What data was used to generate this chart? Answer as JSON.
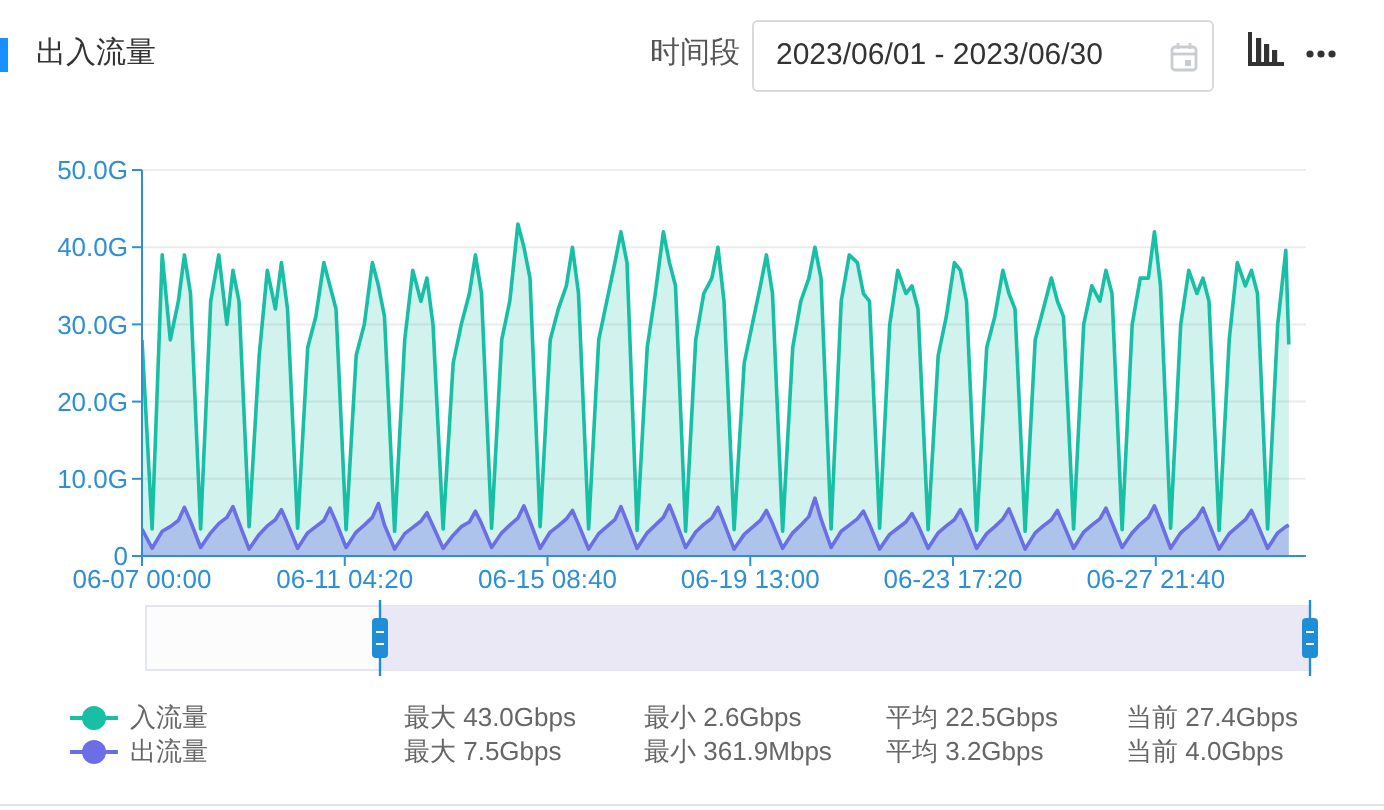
{
  "chart_data": {
    "type": "area",
    "title": "出入流量",
    "annotations": [
      "时间段",
      "2023/06/01 - 2023/06/30",
      "最大 43.0Gbps",
      "最小 2.6Gbps",
      "平均 22.5Gbps",
      "当前 27.4Gbps",
      "最大 7.5Gbps",
      "最小 361.9Mbps",
      "平均 3.2Gbps",
      "当前 4.0Gbps"
    ],
    "x": [
      "2023-06-07T00:00",
      "2023-06-07T05:00",
      "2023-06-07T10:00",
      "2023-06-07T14:00",
      "2023-06-07T18:00",
      "2023-06-07T21:00",
      "2023-06-08T00:00",
      "2023-06-08T05:00",
      "2023-06-08T10:00",
      "2023-06-08T14:00",
      "2023-06-08T18:00",
      "2023-06-08T21:00",
      "2023-06-09T00:00",
      "2023-06-09T05:00",
      "2023-06-09T10:00",
      "2023-06-09T14:00",
      "2023-06-09T18:00",
      "2023-06-09T21:00",
      "2023-06-10T00:00",
      "2023-06-10T05:00",
      "2023-06-10T10:00",
      "2023-06-10T14:00",
      "2023-06-10T18:00",
      "2023-06-10T21:00",
      "2023-06-11T00:00",
      "2023-06-11T05:00",
      "2023-06-11T10:00",
      "2023-06-11T14:00",
      "2023-06-11T18:00",
      "2023-06-11T21:00",
      "2023-06-12T00:00",
      "2023-06-12T05:00",
      "2023-06-12T10:00",
      "2023-06-12T14:00",
      "2023-06-12T18:00",
      "2023-06-12T21:00",
      "2023-06-13T00:00",
      "2023-06-13T05:00",
      "2023-06-13T10:00",
      "2023-06-13T14:00",
      "2023-06-13T18:00",
      "2023-06-13T21:00",
      "2023-06-14T00:00",
      "2023-06-14T05:00",
      "2023-06-14T10:00",
      "2023-06-14T14:00",
      "2023-06-14T18:00",
      "2023-06-14T21:00",
      "2023-06-15T00:00",
      "2023-06-15T05:00",
      "2023-06-15T10:00",
      "2023-06-15T14:00",
      "2023-06-15T18:00",
      "2023-06-15T21:00",
      "2023-06-16T00:00",
      "2023-06-16T05:00",
      "2023-06-16T10:00",
      "2023-06-16T14:00",
      "2023-06-16T18:00",
      "2023-06-16T21:00",
      "2023-06-17T00:00",
      "2023-06-17T05:00",
      "2023-06-17T10:00",
      "2023-06-17T14:00",
      "2023-06-17T18:00",
      "2023-06-17T21:00",
      "2023-06-18T00:00",
      "2023-06-18T05:00",
      "2023-06-18T10:00",
      "2023-06-18T14:00",
      "2023-06-18T18:00",
      "2023-06-18T21:00",
      "2023-06-19T00:00",
      "2023-06-19T05:00",
      "2023-06-19T10:00",
      "2023-06-19T14:00",
      "2023-06-19T18:00",
      "2023-06-19T21:00",
      "2023-06-20T00:00",
      "2023-06-20T05:00",
      "2023-06-20T10:00",
      "2023-06-20T14:00",
      "2023-06-20T18:00",
      "2023-06-20T21:00",
      "2023-06-21T00:00",
      "2023-06-21T05:00",
      "2023-06-21T10:00",
      "2023-06-21T14:00",
      "2023-06-21T18:00",
      "2023-06-21T21:00",
      "2023-06-22T00:00",
      "2023-06-22T05:00",
      "2023-06-22T10:00",
      "2023-06-22T14:00",
      "2023-06-22T18:00",
      "2023-06-22T21:00",
      "2023-06-23T00:00",
      "2023-06-23T05:00",
      "2023-06-23T10:00",
      "2023-06-23T14:00",
      "2023-06-23T18:00",
      "2023-06-23T21:00",
      "2023-06-24T00:00",
      "2023-06-24T05:00",
      "2023-06-24T10:00",
      "2023-06-24T14:00",
      "2023-06-24T18:00",
      "2023-06-24T21:00",
      "2023-06-25T00:00",
      "2023-06-25T05:00",
      "2023-06-25T10:00",
      "2023-06-25T14:00",
      "2023-06-25T18:00",
      "2023-06-25T21:00",
      "2023-06-26T00:00",
      "2023-06-26T05:00",
      "2023-06-26T10:00",
      "2023-06-26T14:00",
      "2023-06-26T18:00",
      "2023-06-26T21:00",
      "2023-06-27T00:00",
      "2023-06-27T05:00",
      "2023-06-27T10:00",
      "2023-06-27T14:00",
      "2023-06-27T18:00",
      "2023-06-27T21:00",
      "2023-06-28T00:00",
      "2023-06-28T05:00",
      "2023-06-28T10:00",
      "2023-06-28T14:00",
      "2023-06-28T18:00",
      "2023-06-28T21:00",
      "2023-06-29T00:00",
      "2023-06-29T05:00",
      "2023-06-29T10:00",
      "2023-06-29T14:00",
      "2023-06-29T18:00",
      "2023-06-29T21:00",
      "2023-06-30T00:00",
      "2023-06-30T05:00",
      "2023-06-30T10:00",
      "2023-06-30T14:00",
      "2023-06-30T15:30"
    ],
    "series": [
      {
        "name": "入流量",
        "color": "#17bfa5",
        "values": [
          28,
          3.5,
          39,
          28,
          33,
          39,
          34,
          3.5,
          33,
          39,
          30,
          37,
          33,
          3.8,
          26,
          37,
          32,
          38,
          32,
          3.6,
          27,
          31,
          38,
          35,
          32,
          3.4,
          26,
          30,
          38,
          35,
          31,
          3.2,
          28,
          37,
          33,
          36,
          30,
          3.5,
          25,
          30,
          34,
          39,
          34,
          3.6,
          28,
          33,
          43,
          40,
          36,
          3.8,
          28,
          32,
          35,
          40,
          34,
          3.5,
          28,
          33,
          38,
          42,
          38,
          3.3,
          27,
          34,
          42,
          38,
          35,
          3.2,
          28,
          34,
          36,
          40,
          33,
          3.4,
          25,
          30,
          35,
          39,
          34,
          3.2,
          27,
          33,
          36,
          40,
          36,
          3.5,
          33,
          39,
          38,
          34,
          33,
          3.6,
          30,
          37,
          34,
          35,
          32,
          3.4,
          26,
          31,
          38,
          37,
          33,
          3.3,
          27,
          31,
          37,
          34,
          32,
          3.2,
          28,
          32,
          36,
          33,
          31,
          3.5,
          30,
          35,
          33,
          37,
          34,
          3.4,
          30,
          36,
          36,
          42,
          35,
          3.6,
          30,
          37,
          34,
          36,
          33,
          3.3,
          28,
          38,
          35,
          37,
          34,
          3.5,
          30,
          39.6,
          27.4
        ]
      },
      {
        "name": "出流量",
        "color": "#6c6ee6",
        "values": [
          3.5,
          1.0,
          3.2,
          3.8,
          4.6,
          6.3,
          4.5,
          1.1,
          3.0,
          4.2,
          5.0,
          6.4,
          4.3,
          0.9,
          2.8,
          3.9,
          4.7,
          6.0,
          4.2,
          1.0,
          3.0,
          3.8,
          4.6,
          6.2,
          4.4,
          1.1,
          3.1,
          4.0,
          5.0,
          6.8,
          4.0,
          0.9,
          2.9,
          3.7,
          4.5,
          5.6,
          3.9,
          1.0,
          2.7,
          3.8,
          4.4,
          5.8,
          4.2,
          1.1,
          3.0,
          4.0,
          4.9,
          6.5,
          4.5,
          1.0,
          3.1,
          3.9,
          4.8,
          5.9,
          4.1,
          0.9,
          2.9,
          3.8,
          4.7,
          6.4,
          4.4,
          1.0,
          3.0,
          4.0,
          5.0,
          6.6,
          4.6,
          1.1,
          3.1,
          4.1,
          4.9,
          6.3,
          4.3,
          0.9,
          2.8,
          3.7,
          4.6,
          5.9,
          4.2,
          1.0,
          3.0,
          4.0,
          5.1,
          7.5,
          4.8,
          1.1,
          3.2,
          4.0,
          4.8,
          5.8,
          4.1,
          0.9,
          2.8,
          3.6,
          4.4,
          5.5,
          4.0,
          1.0,
          3.0,
          3.9,
          4.7,
          6.0,
          4.3,
          1.0,
          2.9,
          3.8,
          4.8,
          6.1,
          4.2,
          0.9,
          3.0,
          3.9,
          4.7,
          5.9,
          4.1,
          1.0,
          3.1,
          4.0,
          4.8,
          6.2,
          4.3,
          1.1,
          3.0,
          4.1,
          5.0,
          6.5,
          4.5,
          1.0,
          3.0,
          3.9,
          4.9,
          6.2,
          4.2,
          0.9,
          2.9,
          3.8,
          4.7,
          5.9,
          4.1,
          1.0,
          3.0,
          3.8,
          4.0
        ]
      }
    ],
    "xlim": [
      "2023-06-07T00:00",
      "2023-07-01T00:00"
    ],
    "xticks": [
      {
        "value": "2023-06-07T00:00",
        "label": "06-07 00:00"
      },
      {
        "value": "2023-06-11T04:20",
        "label": "06-11 04:20"
      },
      {
        "value": "2023-06-15T08:40",
        "label": "06-15 08:40"
      },
      {
        "value": "2023-06-19T13:00",
        "label": "06-19 13:00"
      },
      {
        "value": "2023-06-23T17:20",
        "label": "06-23 17:20"
      },
      {
        "value": "2023-06-27T21:40",
        "label": "06-27 21:40"
      }
    ],
    "ylim": [
      0,
      50
    ],
    "yticks": [
      0,
      {
        "value": 10,
        "label": "10.0G"
      },
      {
        "value": 20,
        "label": "20.0G"
      },
      {
        "value": 30,
        "label": "30.0G"
      },
      {
        "value": 40,
        "label": "40.0G"
      },
      {
        "value": 50,
        "label": "50.0G"
      }
    ],
    "grid": "y",
    "legend": "bottom"
  }
}
